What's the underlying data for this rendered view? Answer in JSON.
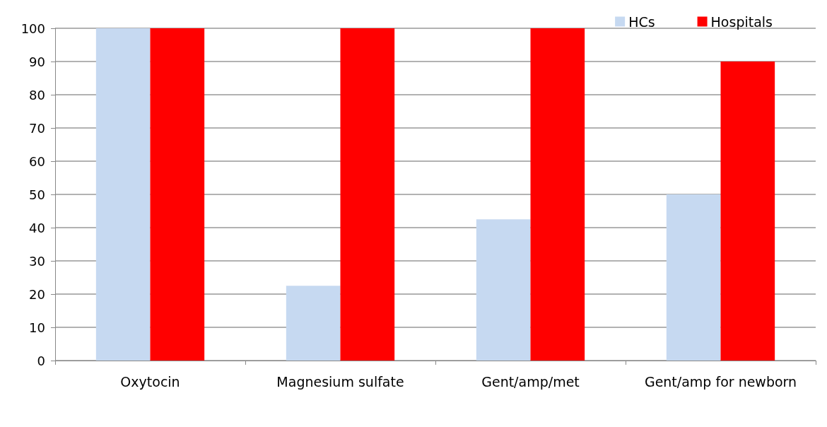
{
  "chart_data": {
    "type": "bar",
    "categories": [
      "Oxytocin",
      "Magnesium sulfate",
      "Gent/amp/met",
      "Gent/amp for newborn"
    ],
    "series": [
      {
        "name": "HCs",
        "color": "#c6d9f1",
        "values": [
          100,
          22.5,
          42.5,
          50
        ]
      },
      {
        "name": "Hospitals",
        "color": "#ff0000",
        "values": [
          100,
          100,
          100,
          90
        ]
      }
    ],
    "ylim": [
      0,
      100
    ],
    "yticks": [
      0,
      10,
      20,
      30,
      40,
      50,
      60,
      70,
      80,
      90,
      100
    ],
    "grid": "y",
    "legend": "top right"
  }
}
